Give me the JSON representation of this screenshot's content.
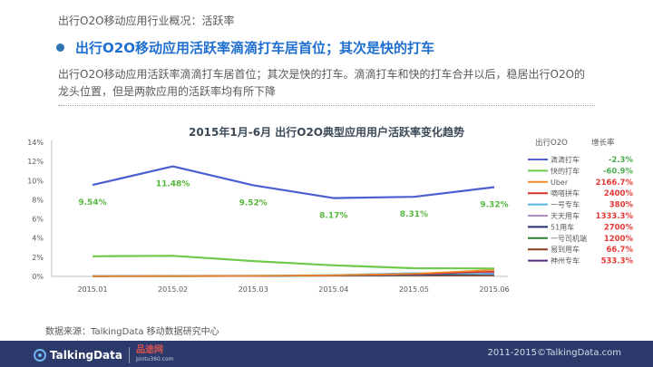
{
  "header": {
    "breadcrumb": "出行O2O移动应用行业概况：活跃率",
    "headline": "出行O2O移动应用活跃率滴滴打车居首位；其次是快的打车",
    "body_line1": "出行O2O移动应用活跃率滴滴打车居首位；其次是快的打车。滴滴打车和快的打车合并以后，稳居出行O2O的",
    "body_line2": "龙头位置，但是两款应用的活跃率均有所下降"
  },
  "chart_data": {
    "type": "line",
    "title": "2015年1月-6月 出行O2O典型应用用户活跃率变化趋势",
    "x": [
      "2015.01",
      "2015.02",
      "2015.03",
      "2015.04",
      "2015.05",
      "2015.06"
    ],
    "y_ticks": [
      "0%",
      "2%",
      "4%",
      "6%",
      "8%",
      "10%",
      "12%",
      "14%"
    ],
    "ylim": [
      0,
      14
    ],
    "grid": false,
    "legend": {
      "position": "right",
      "header_name": "出行O2O",
      "header_growth": "增长率"
    },
    "series": [
      {
        "name": "滴滴打车",
        "growth": "-2.3%",
        "color": "#4a5fd0",
        "values": [
          9.54,
          11.48,
          9.52,
          8.17,
          8.31,
          9.32
        ],
        "labels": [
          "9.54%",
          "11.48%",
          "9.52%",
          "8.17%",
          "8.31%",
          "9.32%"
        ]
      },
      {
        "name": "快的打车",
        "growth": "-60.9%",
        "color": "#6fc94a",
        "values": [
          2.1,
          2.15,
          1.6,
          1.15,
          0.85,
          0.82
        ]
      },
      {
        "name": "Uber",
        "growth": "2166.7%",
        "color": "#f08a24",
        "values": [
          0.03,
          0.04,
          0.07,
          0.12,
          0.28,
          0.68
        ]
      },
      {
        "name": "嘀嗒拼车",
        "growth": "2400%",
        "color": "#d8342b",
        "values": [
          0.02,
          0.03,
          0.05,
          0.1,
          0.25,
          0.5
        ]
      },
      {
        "name": "一号专车",
        "growth": "380%",
        "color": "#56b4e9",
        "values": [
          0.05,
          0.05,
          0.08,
          0.15,
          0.35,
          0.24
        ]
      },
      {
        "name": "天天用车",
        "growth": "1333.3%",
        "color": "#b48ac8",
        "values": [
          0.03,
          0.03,
          0.05,
          0.1,
          0.22,
          0.43
        ]
      },
      {
        "name": "51用车",
        "growth": "2700%",
        "color": "#1b2f6e",
        "values": [
          0.01,
          0.02,
          0.04,
          0.09,
          0.17,
          0.28
        ]
      },
      {
        "name": "一号司机端",
        "growth": "1200%",
        "color": "#2e7d32",
        "values": [
          0.02,
          0.02,
          0.04,
          0.08,
          0.15,
          0.26
        ]
      },
      {
        "name": "易到用车",
        "growth": "66.7%",
        "color": "#8b3a1f",
        "values": [
          0.06,
          0.07,
          0.08,
          0.09,
          0.1,
          0.1
        ]
      },
      {
        "name": "神州专车",
        "growth": "533.3%",
        "color": "#5b2c83",
        "values": [
          0.03,
          0.04,
          0.06,
          0.09,
          0.13,
          0.19
        ]
      }
    ]
  },
  "source_note": "数据来源：TalkingData 移动数据研究中心",
  "footer": {
    "brand": "TalkingData",
    "partner_name": "品途网",
    "partner_url": "pintu360.com",
    "copyright": "2011-2015©TalkingData.com"
  }
}
